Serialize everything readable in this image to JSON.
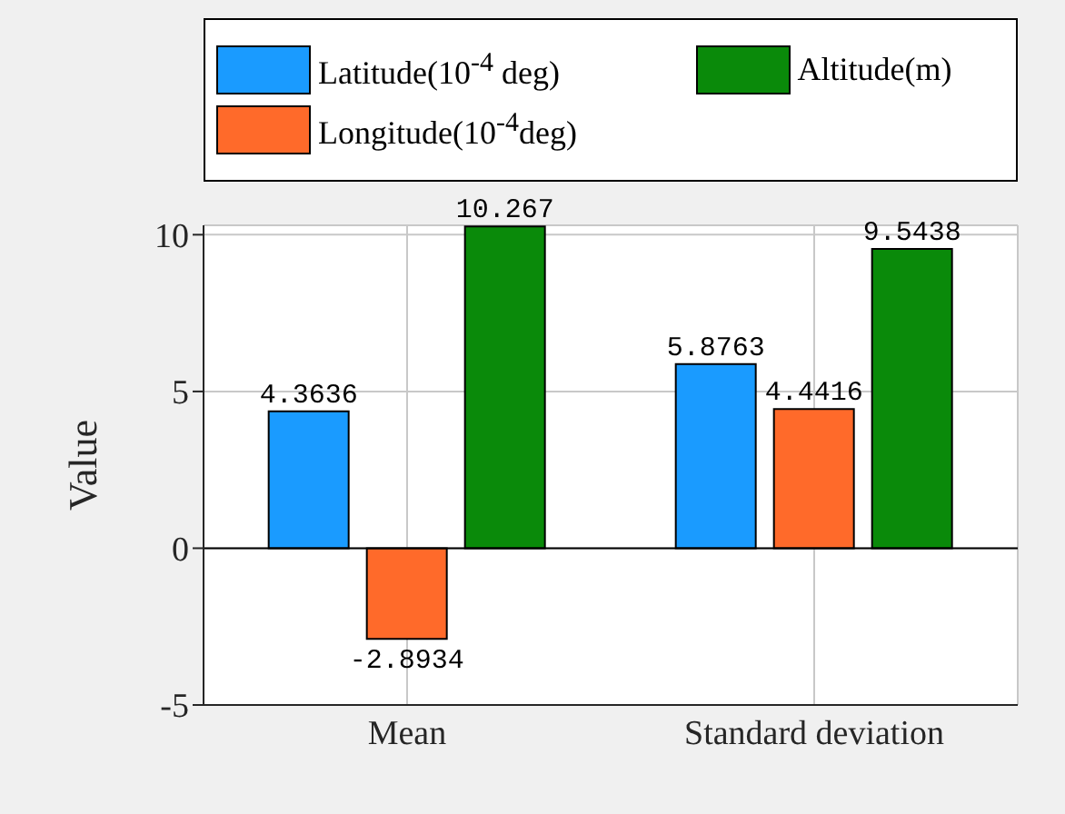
{
  "chart_data": {
    "type": "bar",
    "ylabel": "Value",
    "categories": [
      "Mean",
      "Standard deviation"
    ],
    "series": [
      {
        "name": "Latitude(10$^{-4}$ deg)",
        "color": "#1a9bff",
        "values": [
          4.3636,
          5.8763
        ]
      },
      {
        "name": "Longitude(10$^{-4}$deg)",
        "color": "#ff6a2a",
        "values": [
          -2.8934,
          4.4416
        ]
      },
      {
        "name": "Altitude(m)",
        "color": "#0a8a0a",
        "values": [
          10.267,
          9.5438
        ]
      }
    ],
    "ylim": [
      -5,
      10.3
    ],
    "yticks": [
      -5,
      0,
      5,
      10
    ],
    "grid": true,
    "legend": "top",
    "data_labels": true,
    "ref_lines": [
      {
        "axis": "y",
        "value": 0,
        "color": "#000000"
      }
    ]
  }
}
